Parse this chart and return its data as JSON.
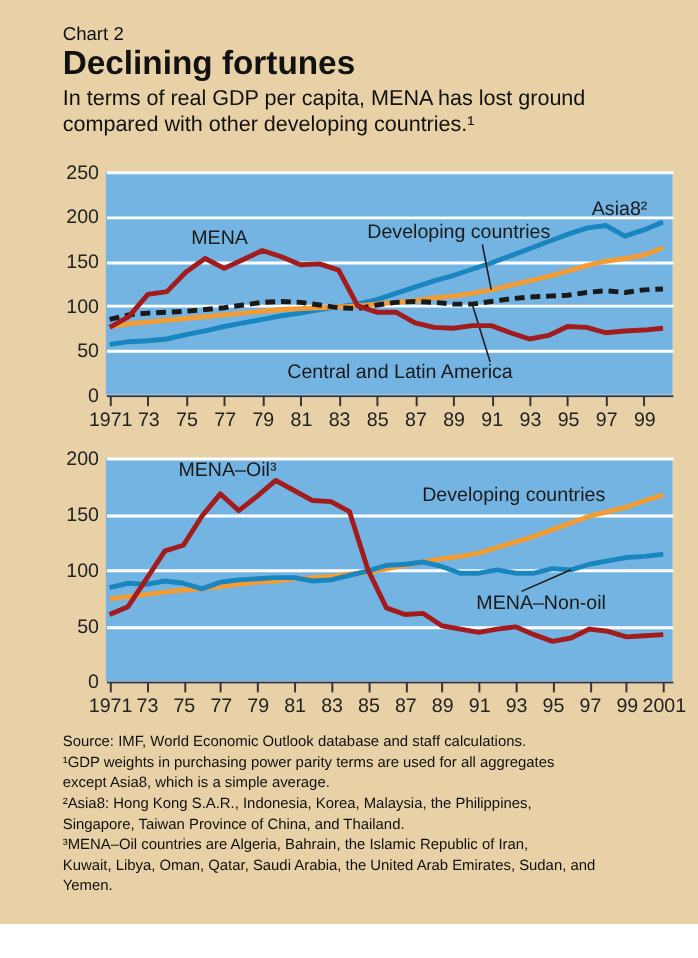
{
  "chart_data": [
    {
      "type": "line",
      "title": "Declining fortunes",
      "subtitle": "In terms of real GDP per capita, MENA has lost ground compared with other developing countries.¹",
      "x": [
        1971,
        1972,
        1973,
        1974,
        1975,
        1976,
        1977,
        1978,
        1979,
        1980,
        1981,
        1982,
        1983,
        1984,
        1985,
        1986,
        1987,
        1988,
        1989,
        1990,
        1991,
        1992,
        1993,
        1994,
        1995,
        1996,
        1997,
        1998,
        1999,
        2000
      ],
      "series": [
        {
          "name": "Asia8²",
          "color": "#1a86c0",
          "values": [
            57,
            60,
            61,
            63,
            68,
            72,
            77,
            81,
            85,
            89,
            92,
            96,
            99,
            102,
            107,
            114,
            121,
            128,
            134,
            141,
            148,
            156,
            164,
            172,
            180,
            187,
            190,
            178,
            185,
            194
          ]
        },
        {
          "name": "Developing countries",
          "color": "#f29c33",
          "values": [
            77,
            80,
            82,
            84,
            86,
            88,
            90,
            92,
            94,
            96,
            97,
            98,
            99,
            100,
            102,
            104,
            106,
            109,
            111,
            114,
            118,
            123,
            128,
            133,
            139,
            145,
            150,
            153,
            157,
            165
          ]
        },
        {
          "name": "Central and Latin America",
          "color": "#1a1a1a",
          "line_style": "dashed",
          "values": [
            85,
            90,
            92,
            93,
            94,
            96,
            98,
            101,
            104,
            105,
            104,
            101,
            98,
            97,
            101,
            104,
            105,
            104,
            102,
            102,
            105,
            108,
            110,
            111,
            112,
            115,
            117,
            115,
            118,
            119
          ]
        },
        {
          "name": "MENA",
          "color": "#a31c1d",
          "values": [
            76,
            88,
            113,
            116,
            138,
            153,
            142,
            152,
            162,
            155,
            146,
            147,
            140,
            100,
            93,
            93,
            81,
            76,
            75,
            78,
            78,
            70,
            63,
            67,
            77,
            76,
            70,
            72,
            73,
            75
          ]
        }
      ],
      "xlim": [
        1970.8,
        2000.5
      ],
      "xticks": [
        {
          "value": 1971,
          "label": "1971"
        },
        {
          "value": 1973,
          "label": "73"
        },
        {
          "value": 1975,
          "label": "75"
        },
        {
          "value": 1977,
          "label": "77"
        },
        {
          "value": 1979,
          "label": "79"
        },
        {
          "value": 1981,
          "label": "81"
        },
        {
          "value": 1983,
          "label": "83"
        },
        {
          "value": 1985,
          "label": "85"
        },
        {
          "value": 1987,
          "label": "87"
        },
        {
          "value": 1989,
          "label": "89"
        },
        {
          "value": 1991,
          "label": "91"
        },
        {
          "value": 1993,
          "label": "93"
        },
        {
          "value": 1995,
          "label": "95"
        },
        {
          "value": 1997,
          "label": "97"
        },
        {
          "value": 1999,
          "label": "99"
        }
      ],
      "ylim": [
        0,
        250
      ],
      "yticks": [
        0,
        50,
        100,
        150,
        200,
        250
      ],
      "grid": "y",
      "marker": "none",
      "line_style": "solid",
      "annotations": [
        "Chart 2"
      ]
    },
    {
      "type": "line",
      "x": [
        1971,
        1972,
        1973,
        1974,
        1975,
        1976,
        1977,
        1978,
        1979,
        1980,
        1981,
        1982,
        1983,
        1984,
        1985,
        1986,
        1987,
        1988,
        1989,
        1990,
        1991,
        1992,
        1993,
        1994,
        1995,
        1996,
        1997,
        1998,
        1999,
        2000,
        2001
      ],
      "series": [
        {
          "name": "Developing countries",
          "color": "#f29c33",
          "values": [
            74,
            76,
            78,
            80,
            82,
            83,
            85,
            87,
            89,
            90,
            92,
            93,
            94,
            96,
            98,
            101,
            104,
            107,
            110,
            112,
            115,
            120,
            125,
            130,
            136,
            142,
            148,
            152,
            156,
            162,
            167
          ]
        },
        {
          "name": "MENA–Non-oil",
          "color": "#1a86c0",
          "values": [
            84,
            88,
            87,
            90,
            88,
            83,
            89,
            91,
            92,
            93,
            93,
            90,
            91,
            95,
            99,
            104,
            105,
            107,
            103,
            97,
            97,
            100,
            97,
            97,
            101,
            100,
            105,
            108,
            111,
            112,
            114
          ]
        },
        {
          "name": "MENA–Oil³",
          "color": "#a31c1d",
          "values": [
            60,
            67,
            92,
            117,
            122,
            148,
            168,
            153,
            166,
            180,
            171,
            162,
            161,
            152,
            100,
            66,
            60,
            61,
            50,
            47,
            44,
            47,
            49,
            42,
            36,
            39,
            47,
            45,
            40,
            41,
            42
          ]
        }
      ],
      "xlim": [
        1970.8,
        2001.5
      ],
      "xticks": [
        {
          "value": 1971,
          "label": "1971"
        },
        {
          "value": 1973,
          "label": "73"
        },
        {
          "value": 1975,
          "label": "75"
        },
        {
          "value": 1977,
          "label": "77"
        },
        {
          "value": 1979,
          "label": "79"
        },
        {
          "value": 1981,
          "label": "81"
        },
        {
          "value": 1983,
          "label": "83"
        },
        {
          "value": 1985,
          "label": "85"
        },
        {
          "value": 1987,
          "label": "87"
        },
        {
          "value": 1989,
          "label": "89"
        },
        {
          "value": 1991,
          "label": "91"
        },
        {
          "value": 1993,
          "label": "93"
        },
        {
          "value": 1995,
          "label": "95"
        },
        {
          "value": 1997,
          "label": "97"
        },
        {
          "value": 1999,
          "label": "99"
        },
        {
          "value": 2001,
          "label": "2001"
        }
      ],
      "ylim": [
        0,
        200
      ],
      "yticks": [
        0,
        50,
        100,
        150,
        200
      ],
      "grid": "y",
      "marker": "none",
      "line_style": "solid",
      "annotations": [
        "Source: IMF, World Economic Outlook database and staff calculations.",
        "¹GDP weights in purchasing power parity terms are used for all aggregates except Asia8, which is a simple average.",
        "²Asia8: Hong Kong S.A.R., Indonesia, Korea, Malaysia, the Philippines, Singapore, Taiwan Province of China, and Thailand.",
        "³MENA–Oil countries are Algeria, Bahrain, the Islamic Republic of Iran, Kuwait, Libya, Oman, Qatar, Saudi Arabia, the United Arab Emirates, Sudan, and Yemen."
      ]
    }
  ]
}
